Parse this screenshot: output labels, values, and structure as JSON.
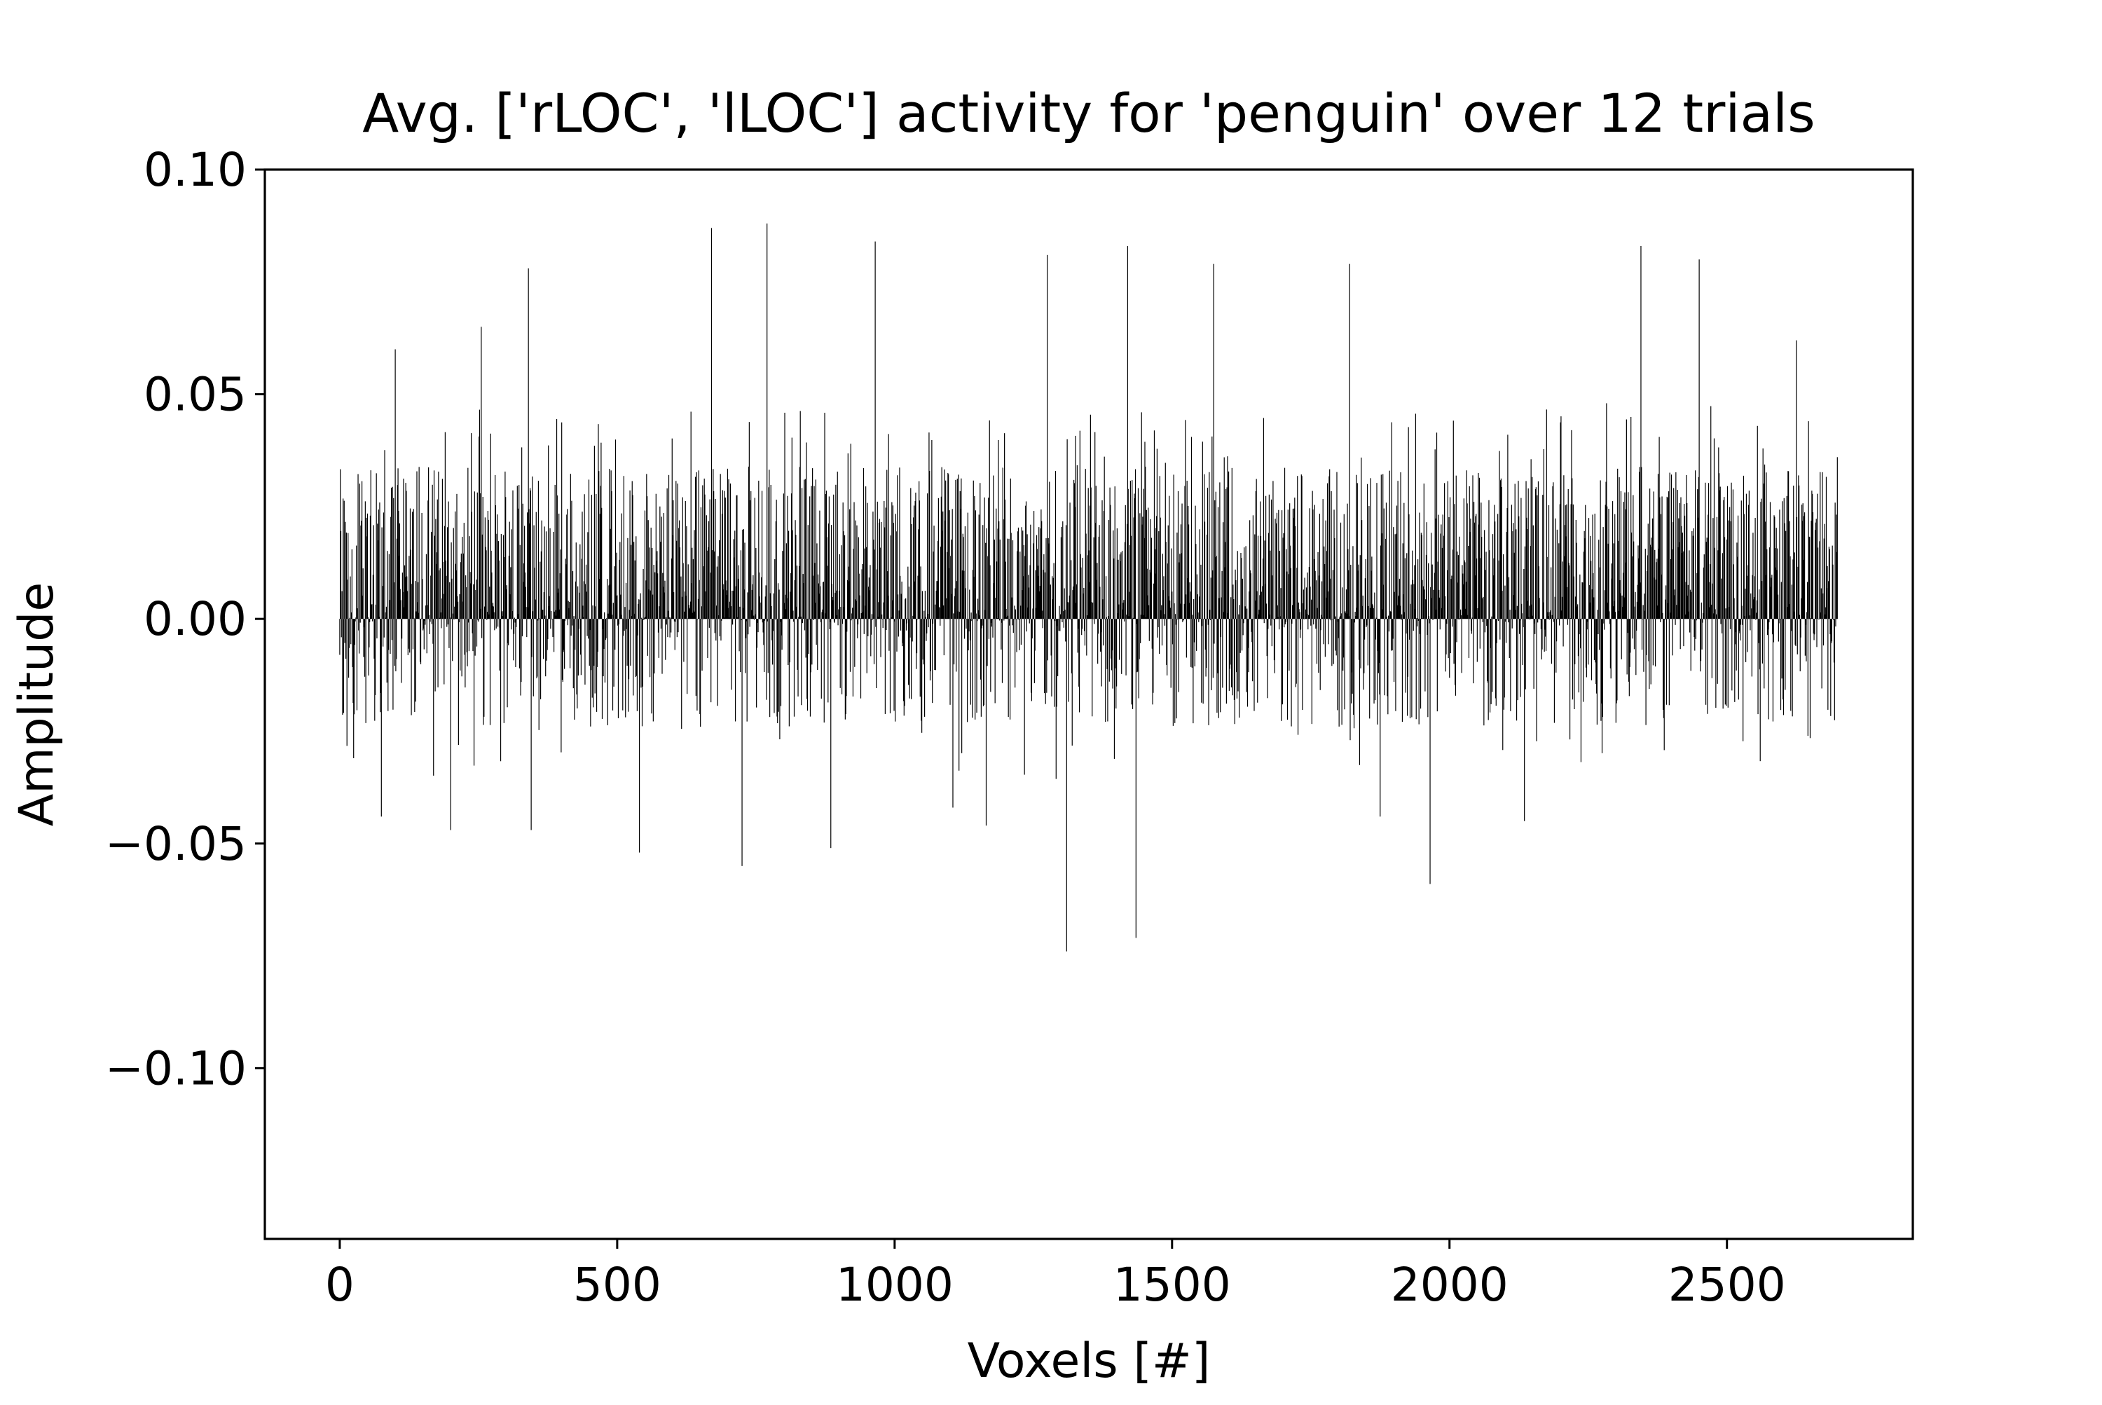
{
  "chart_data": {
    "type": "bar",
    "title": "Avg. ['rLOC', 'lLOC'] activity for 'penguin' over 12 trials",
    "xlabel": "Voxels [#]",
    "ylabel": "Amplitude",
    "xlim": [
      -135,
      2835
    ],
    "ylim": [
      -0.138,
      0.1
    ],
    "xticks": [
      0,
      500,
      1000,
      1500,
      2000,
      2500
    ],
    "xtick_labels": [
      "0",
      "500",
      "1000",
      "1500",
      "2000",
      "2500"
    ],
    "yticks": [
      0.1,
      0.05,
      0.0,
      -0.05,
      -0.1
    ],
    "ytick_labels": [
      "0.10",
      "0.05",
      "0.00",
      "−0.05",
      "−0.10"
    ],
    "grid": false,
    "bar_color": "#000000",
    "n_voxels": 2700,
    "notable_values": [
      {
        "x": 0,
        "y": -0.008
      },
      {
        "x": 25,
        "y": -0.031
      },
      {
        "x": 75,
        "y": -0.044
      },
      {
        "x": 100,
        "y": 0.06
      },
      {
        "x": 200,
        "y": -0.047
      },
      {
        "x": 255,
        "y": 0.065
      },
      {
        "x": 340,
        "y": 0.078
      },
      {
        "x": 345,
        "y": -0.047
      },
      {
        "x": 540,
        "y": -0.052
      },
      {
        "x": 670,
        "y": 0.087
      },
      {
        "x": 725,
        "y": -0.055
      },
      {
        "x": 770,
        "y": 0.088
      },
      {
        "x": 885,
        "y": -0.051
      },
      {
        "x": 965,
        "y": 0.084
      },
      {
        "x": 1105,
        "y": -0.042
      },
      {
        "x": 1165,
        "y": -0.046
      },
      {
        "x": 1275,
        "y": 0.081
      },
      {
        "x": 1310,
        "y": -0.074
      },
      {
        "x": 1420,
        "y": 0.083
      },
      {
        "x": 1435,
        "y": -0.071
      },
      {
        "x": 1575,
        "y": 0.079
      },
      {
        "x": 1820,
        "y": 0.079
      },
      {
        "x": 1875,
        "y": -0.044
      },
      {
        "x": 1965,
        "y": -0.059
      },
      {
        "x": 2135,
        "y": -0.045
      },
      {
        "x": 2345,
        "y": 0.083
      },
      {
        "x": 2450,
        "y": 0.08
      },
      {
        "x": 2625,
        "y": 0.062
      },
      {
        "x": 2700,
        "y": 0.036
      }
    ]
  }
}
